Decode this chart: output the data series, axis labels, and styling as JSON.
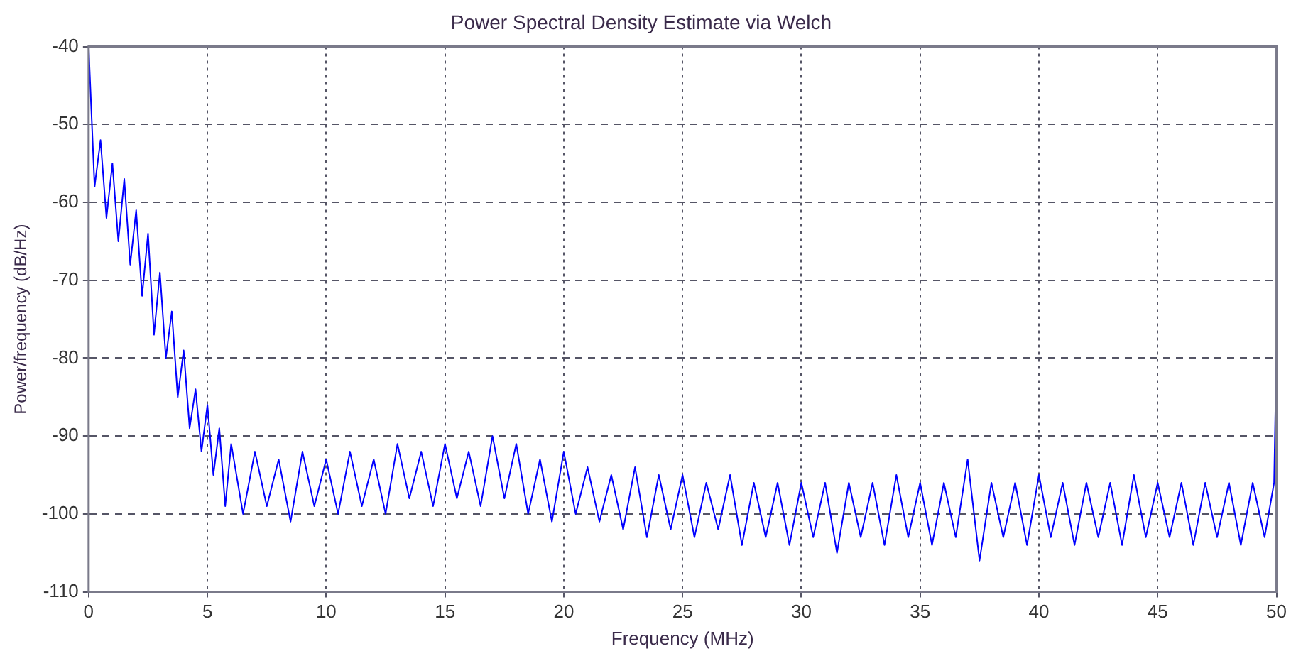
{
  "chart_data": {
    "type": "line",
    "title": "Power Spectral Density Estimate via Welch",
    "xlabel": "Frequency (MHz)",
    "ylabel": "Power/frequency (dB/Hz)",
    "xlim": [
      0,
      50
    ],
    "xticks": [
      0,
      5,
      10,
      15,
      20,
      25,
      30,
      35,
      40,
      45,
      50
    ],
    "ylim": [
      -110,
      -40
    ],
    "yticks": [
      -110,
      -100,
      -90,
      -80,
      -70,
      -60,
      -50,
      -40
    ],
    "grid": true,
    "legend": false,
    "marker": "none",
    "line_style": "solid",
    "series": [
      {
        "color": "#0000ff",
        "x": [
          0,
          0.25,
          0.5,
          0.75,
          1,
          1.25,
          1.5,
          1.75,
          2,
          2.25,
          2.5,
          2.75,
          3,
          3.25,
          3.5,
          3.75,
          4,
          4.25,
          4.5,
          4.75,
          5,
          5.25,
          5.5,
          5.75,
          6,
          6.5,
          7,
          7.5,
          8,
          8.5,
          9,
          9.5,
          10,
          10.5,
          11,
          11.5,
          12,
          12.5,
          13,
          13.5,
          14,
          14.5,
          15,
          15.5,
          16,
          16.5,
          17,
          17.5,
          18,
          18.5,
          19,
          19.5,
          20,
          20.5,
          21,
          21.5,
          22,
          22.5,
          23,
          23.5,
          24,
          24.5,
          25,
          25.5,
          26,
          26.5,
          27,
          27.5,
          28,
          28.5,
          29,
          29.5,
          30,
          30.5,
          31,
          31.5,
          32,
          32.5,
          33,
          33.5,
          34,
          34.5,
          35,
          35.5,
          36,
          36.5,
          37,
          37.5,
          38,
          38.5,
          39,
          39.5,
          40,
          40.5,
          41,
          41.5,
          42,
          42.5,
          43,
          43.5,
          44,
          44.5,
          45,
          45.5,
          46,
          46.5,
          47,
          47.5,
          48,
          48.5,
          49,
          49.5,
          49.9,
          50
        ],
        "values": [
          -40,
          -58,
          -52,
          -62,
          -55,
          -65,
          -57,
          -68,
          -61,
          -72,
          -64,
          -77,
          -69,
          -80,
          -74,
          -85,
          -79,
          -89,
          -84,
          -92,
          -86,
          -95,
          -89,
          -99,
          -91,
          -100,
          -92,
          -99,
          -93,
          -101,
          -92,
          -99,
          -93,
          -100,
          -92,
          -99,
          -93,
          -100,
          -91,
          -98,
          -92,
          -99,
          -91,
          -98,
          -92,
          -99,
          -90,
          -98,
          -91,
          -100,
          -93,
          -101,
          -92,
          -100,
          -94,
          -101,
          -95,
          -102,
          -94,
          -103,
          -95,
          -102,
          -95,
          -103,
          -96,
          -102,
          -95,
          -104,
          -96,
          -103,
          -96,
          -104,
          -96,
          -103,
          -96,
          -105,
          -96,
          -103,
          -96,
          -104,
          -95,
          -103,
          -96,
          -104,
          -96,
          -103,
          -93,
          -106,
          -96,
          -103,
          -96,
          -104,
          -95,
          -103,
          -96,
          -104,
          -96,
          -103,
          -96,
          -104,
          -95,
          -103,
          -96,
          -103,
          -96,
          -104,
          -96,
          -103,
          -96,
          -104,
          -96,
          -103,
          -96,
          -79
        ]
      }
    ]
  }
}
